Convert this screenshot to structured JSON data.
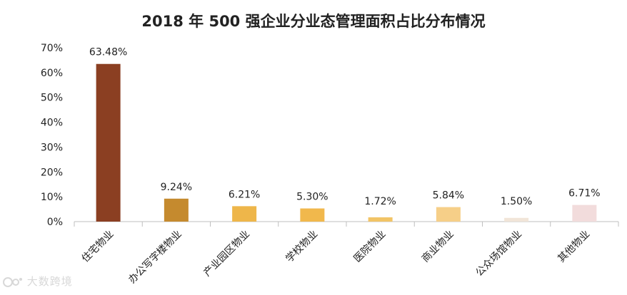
{
  "chart_data": {
    "type": "bar",
    "title": "2018 年 500 强企业分业态管理面积占比分布情况",
    "xlabel": "",
    "ylabel": "",
    "ylim": [
      0,
      70
    ],
    "yticks": [
      "0%",
      "10%",
      "20%",
      "30%",
      "40%",
      "50%",
      "60%",
      "70%"
    ],
    "grid": false,
    "categories": [
      "住宅物业",
      "办公写字楼物业",
      "产业园区物业",
      "学校物业",
      "医院物业",
      "商业物业",
      "公众场馆物业",
      "其他物业"
    ],
    "values": [
      63.48,
      9.24,
      6.21,
      5.3,
      1.72,
      5.84,
      1.5,
      6.71
    ],
    "data_labels": [
      "63.48%",
      "9.24%",
      "6.21%",
      "5.30%",
      "1.72%",
      "5.84%",
      "1.50%",
      "6.71%"
    ],
    "colors": [
      "#8b3f22",
      "#c58a2e",
      "#eeb64a",
      "#f1b84c",
      "#f2c466",
      "#f6cf88",
      "#f1e5d8",
      "#f2dcdc"
    ]
  },
  "watermark": {
    "text": "大数跨境",
    "icon": "brand-logo-icon"
  }
}
